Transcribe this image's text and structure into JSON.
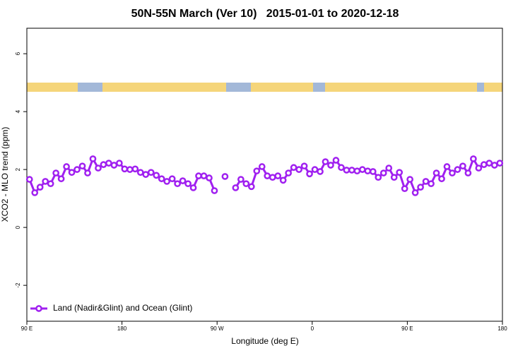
{
  "chart_data": {
    "type": "line",
    "title": "50N-55N March (Ver 10)   2015-01-01 to 2020-12-18",
    "x_label": "Longitude (deg E)",
    "y_label": "XCO2 - MLO trend (ppm)",
    "x": [
      92.5,
      97.5,
      102.5,
      107.5,
      112.5,
      117.5,
      122.5,
      127.5,
      132.5,
      137.5,
      142.5,
      147.5,
      152.5,
      157.5,
      162.5,
      167.5,
      172.5,
      177.5,
      182.5,
      187.5,
      192.5,
      197.5,
      202.5,
      207.5,
      212.5,
      217.5,
      222.5,
      227.5,
      232.5,
      237.5,
      242.5,
      247.5,
      252.5,
      257.5,
      262.5,
      267.5,
      272.5,
      277.5,
      282.5,
      287.5,
      292.5,
      297.5,
      302.5,
      307.5,
      312.5,
      317.5,
      322.5,
      327.5,
      332.5,
      337.5,
      342.5,
      347.5,
      352.5,
      357.5,
      362.5,
      367.5,
      372.5,
      377.5,
      382.5,
      387.5,
      392.5,
      397.5,
      402.5,
      407.5,
      412.5,
      417.5,
      422.5,
      427.5,
      432.5,
      437.5,
      442.5,
      447.5,
      452.5,
      457.5,
      462.5,
      467.5,
      472.5,
      477.5,
      482.5,
      487.5,
      492.5,
      497.5,
      502.5,
      507.5,
      512.5,
      517.5,
      522.5,
      527.5,
      532.5,
      537.5
    ],
    "series": [
      {
        "name": "Land (Nadir&Glint) and Ocean (Glint)",
        "color": "#a020f0",
        "values": [
          1.66,
          1.2,
          1.39,
          1.59,
          1.51,
          1.88,
          1.68,
          2.1,
          1.9,
          2.0,
          2.12,
          1.88,
          2.37,
          2.05,
          2.17,
          2.22,
          2.15,
          2.22,
          2.02,
          2.0,
          2.02,
          1.9,
          1.83,
          1.9,
          1.8,
          1.68,
          1.59,
          1.68,
          1.51,
          1.61,
          1.51,
          1.37,
          1.78,
          1.78,
          1.71,
          1.27,
          null,
          1.76,
          null,
          1.37,
          1.66,
          1.51,
          1.41,
          1.95,
          2.1,
          1.78,
          1.73,
          1.78,
          1.63,
          1.88,
          2.07,
          2.0,
          2.12,
          1.85,
          2.0,
          1.93,
          2.27,
          2.15,
          2.32,
          2.07,
          1.98,
          1.98,
          1.95,
          2.0,
          1.95,
          1.93,
          1.73,
          1.88,
          2.05,
          1.73,
          1.9,
          1.34,
          1.66,
          1.2,
          1.39,
          1.59,
          1.51,
          1.88,
          1.68,
          2.1,
          1.88,
          2.0,
          2.12,
          1.88,
          2.37,
          2.05,
          2.17,
          2.22,
          2.15,
          2.22
        ]
      }
    ],
    "xlim": [
      90,
      540
    ],
    "xticks": [
      {
        "value": 90,
        "label": "90 E"
      },
      180,
      {
        "value": 270,
        "label": "90 W"
      },
      {
        "value": 360,
        "label": "0"
      },
      {
        "value": 450,
        "label": "90 E"
      },
      {
        "value": 540,
        "label": "180"
      }
    ],
    "ylim": [
      -3.24,
      6.88
    ],
    "yticks": [
      -2,
      0,
      2,
      4,
      6
    ],
    "legend": "bottom-left"
  }
}
